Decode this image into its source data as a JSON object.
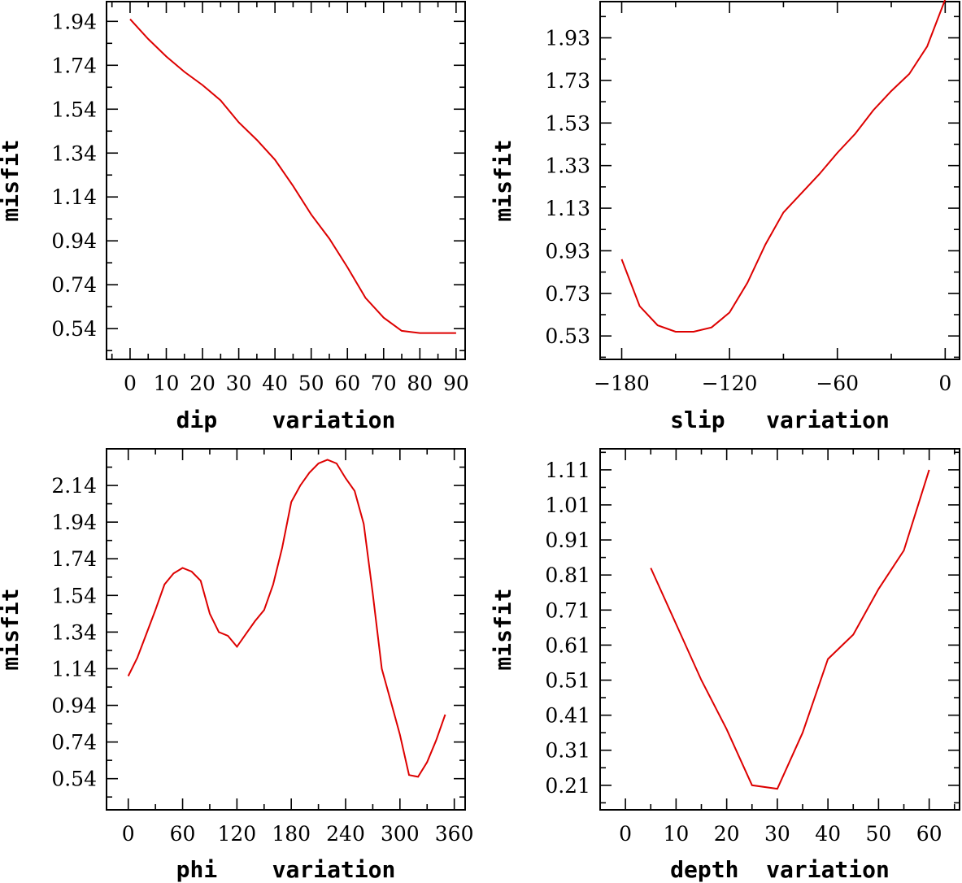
{
  "chart_data": [
    {
      "type": "line",
      "xlabel": "dip    variation",
      "ylabel": "misfit",
      "xlim": [
        -6.5,
        92.5
      ],
      "ylim": [
        0.4,
        2.03
      ],
      "xticks": [
        0,
        10,
        20,
        30,
        40,
        50,
        60,
        70,
        80,
        90
      ],
      "yticks": [
        0.54,
        0.74,
        0.94,
        1.14,
        1.34,
        1.54,
        1.74,
        1.94
      ],
      "ytick_labels": [
        "0.54",
        "0.74",
        "0.94",
        "1.14",
        "1.34",
        "1.54",
        "1.74",
        "1.94"
      ],
      "series": [
        {
          "name": "dip",
          "color": "#dd0000",
          "x": [
            0,
            5,
            10,
            15,
            20,
            25,
            30,
            35,
            40,
            45,
            50,
            55,
            60,
            65,
            70,
            75,
            80,
            85,
            90
          ],
          "y": [
            1.95,
            1.86,
            1.78,
            1.71,
            1.65,
            1.58,
            1.48,
            1.4,
            1.31,
            1.19,
            1.06,
            0.95,
            0.82,
            0.68,
            0.59,
            0.53,
            0.52,
            0.52,
            0.52
          ]
        }
      ]
    },
    {
      "type": "line",
      "xlabel": "slip   variation",
      "ylabel": "misfit",
      "xlim": [
        -192,
        8
      ],
      "ylim": [
        0.42,
        2.1
      ],
      "xticks": [
        -180,
        -120,
        -60,
        0
      ],
      "yticks": [
        0.53,
        0.73,
        0.93,
        1.13,
        1.33,
        1.53,
        1.73,
        1.93
      ],
      "ytick_labels": [
        "0.53",
        "0.73",
        "0.93",
        "1.13",
        "1.33",
        "1.53",
        "1.73",
        "1.93"
      ],
      "series": [
        {
          "name": "slip",
          "color": "#dd0000",
          "x": [
            -180,
            -170,
            -160,
            -150,
            -140,
            -130,
            -120,
            -110,
            -100,
            -90,
            -80,
            -70,
            -60,
            -50,
            -40,
            -30,
            -20,
            -10,
            0
          ],
          "y": [
            0.89,
            0.67,
            0.58,
            0.55,
            0.55,
            0.57,
            0.64,
            0.78,
            0.96,
            1.11,
            1.2,
            1.29,
            1.39,
            1.48,
            1.59,
            1.68,
            1.76,
            1.89,
            2.11
          ]
        }
      ]
    },
    {
      "type": "line",
      "xlabel": "phi    variation",
      "ylabel": "misfit",
      "xlim": [
        -24,
        372
      ],
      "ylim": [
        0.37,
        2.34
      ],
      "xticks": [
        0,
        60,
        120,
        180,
        240,
        300,
        360
      ],
      "yticks": [
        0.54,
        0.74,
        0.94,
        1.14,
        1.34,
        1.54,
        1.74,
        1.94,
        2.14
      ],
      "ytick_labels": [
        "0.54",
        "0.74",
        "0.94",
        "1.14",
        "1.34",
        "1.54",
        "1.74",
        "1.94",
        "2.14"
      ],
      "series": [
        {
          "name": "phi",
          "color": "#dd0000",
          "x": [
            0,
            10,
            20,
            30,
            40,
            50,
            60,
            70,
            80,
            90,
            100,
            110,
            120,
            130,
            140,
            150,
            160,
            170,
            180,
            190,
            200,
            210,
            220,
            230,
            240,
            250,
            260,
            270,
            280,
            290,
            300,
            310,
            320,
            330,
            340,
            350
          ],
          "y": [
            1.1,
            1.2,
            1.33,
            1.46,
            1.6,
            1.66,
            1.69,
            1.67,
            1.62,
            1.44,
            1.34,
            1.32,
            1.26,
            1.33,
            1.4,
            1.46,
            1.6,
            1.8,
            2.05,
            2.14,
            2.21,
            2.26,
            2.28,
            2.26,
            2.18,
            2.11,
            1.93,
            1.55,
            1.14,
            0.96,
            0.78,
            0.56,
            0.55,
            0.63,
            0.75,
            0.89
          ]
        }
      ]
    },
    {
      "type": "line",
      "xlabel": "depth  variation",
      "ylabel": "misfit",
      "xlim": [
        -5,
        66
      ],
      "ylim": [
        0.14,
        1.17
      ],
      "xticks": [
        0,
        10,
        20,
        30,
        40,
        50,
        60
      ],
      "yticks": [
        0.21,
        0.31,
        0.41,
        0.51,
        0.61,
        0.71,
        0.81,
        0.91,
        1.01,
        1.11
      ],
      "ytick_labels": [
        "0.21",
        "0.31",
        "0.41",
        "0.51",
        "0.61",
        "0.71",
        "0.81",
        "0.91",
        "1.01",
        "1.11"
      ],
      "series": [
        {
          "name": "depth",
          "color": "#dd0000",
          "x": [
            5,
            10,
            15,
            20,
            25,
            30,
            35,
            40,
            45,
            50,
            55,
            60
          ],
          "y": [
            0.83,
            0.67,
            0.51,
            0.37,
            0.21,
            0.2,
            0.36,
            0.57,
            0.64,
            0.77,
            0.88,
            1.11
          ]
        }
      ]
    }
  ]
}
